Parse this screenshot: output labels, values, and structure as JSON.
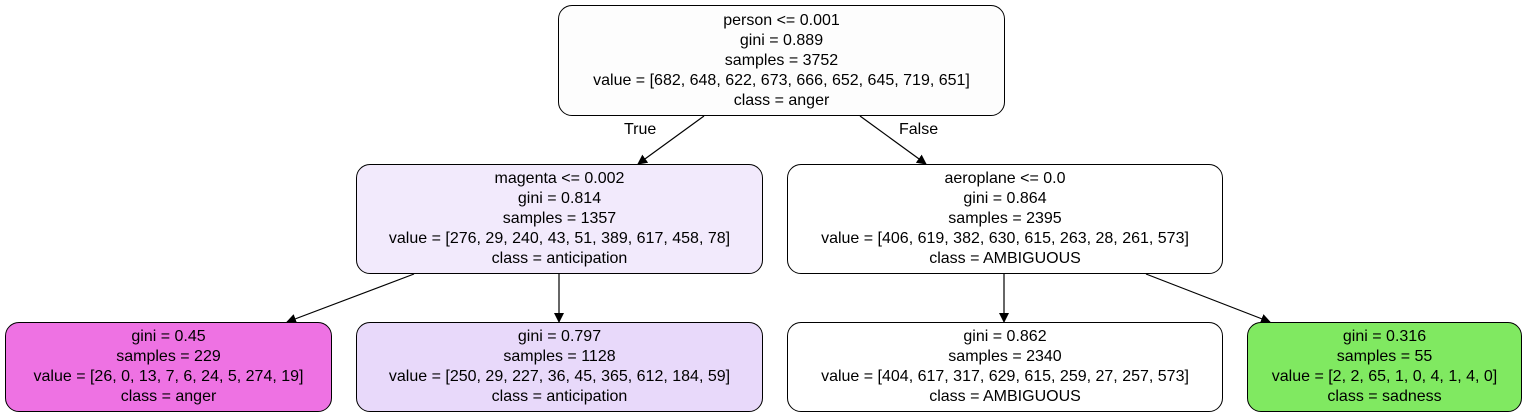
{
  "tree": {
    "nodes": [
      {
        "id": "n0",
        "lines": [
          "person <= 0.001",
          "gini = 0.889",
          "samples = 3752",
          "value = [682, 648, 622, 673, 666, 652, 645, 719, 651]",
          "class = anger"
        ],
        "fill": "#fdfdfd"
      },
      {
        "id": "n1",
        "lines": [
          "magenta <= 0.002",
          "gini = 0.814",
          "samples = 1357",
          "value = [276, 29, 240, 43, 51, 389, 617, 458, 78]",
          "class = anticipation"
        ],
        "fill": "#f2eafc"
      },
      {
        "id": "n2",
        "lines": [
          "aeroplane <= 0.0",
          "gini = 0.864",
          "samples = 2395",
          "value = [406, 619, 382, 630, 615, 263, 28, 261, 573]",
          "class = AMBIGUOUS"
        ],
        "fill": "#ffffff"
      },
      {
        "id": "n3",
        "lines": [
          "gini = 0.45",
          "samples = 229",
          "value = [26, 0, 13, 7, 6, 24, 5, 274, 19]",
          "class = anger"
        ],
        "fill": "#ee72e3"
      },
      {
        "id": "n4",
        "lines": [
          "gini = 0.797",
          "samples = 1128",
          "value = [250, 29, 227, 36, 45, 365, 612, 184, 59]",
          "class = anticipation"
        ],
        "fill": "#e8d9fa"
      },
      {
        "id": "n5",
        "lines": [
          "gini = 0.862",
          "samples = 2340",
          "value = [404, 617, 317, 629, 615, 259, 27, 257, 573]",
          "class = AMBIGUOUS"
        ],
        "fill": "#ffffff"
      },
      {
        "id": "n6",
        "lines": [
          "gini = 0.316",
          "samples = 55",
          "value = [2, 2, 65, 1, 0, 4, 1, 4, 0]",
          "class = sadness"
        ],
        "fill": "#80e961"
      }
    ],
    "edges": [
      {
        "from": "n0",
        "to": "n1"
      },
      {
        "from": "n0",
        "to": "n2"
      },
      {
        "from": "n1",
        "to": "n3"
      },
      {
        "from": "n1",
        "to": "n4"
      },
      {
        "from": "n2",
        "to": "n5"
      },
      {
        "from": "n2",
        "to": "n6"
      }
    ],
    "edge_labels": {
      "true": "True",
      "false": "False"
    },
    "edge_color": "#000000"
  }
}
